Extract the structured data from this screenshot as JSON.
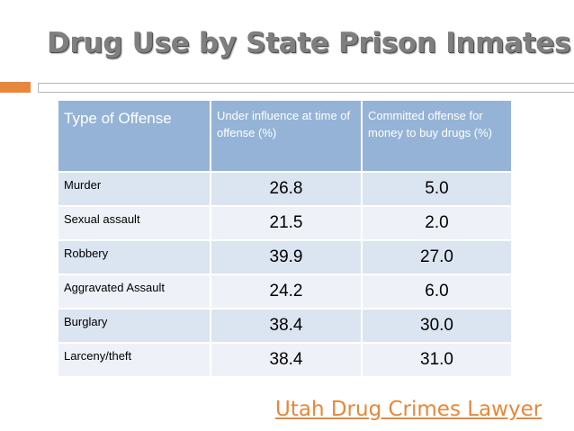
{
  "slide": {
    "title": "Drug Use by State Prison Inmates",
    "accent_color": "#e8873a",
    "header_color": "#95b3d7"
  },
  "table": {
    "headers": [
      "Type of Offense",
      "Under influence at time of offense (%)",
      "Committed offense for money to buy drugs (%)"
    ],
    "rows": [
      {
        "offense": "Murder",
        "under_influence": "26.8",
        "for_money": "5.0"
      },
      {
        "offense": "Sexual assault",
        "under_influence": "21.5",
        "for_money": "2.0"
      },
      {
        "offense": "Robbery",
        "under_influence": "39.9",
        "for_money": "27.0"
      },
      {
        "offense": "Aggravated Assault",
        "under_influence": "24.2",
        "for_money": "6.0"
      },
      {
        "offense": "Burglary",
        "under_influence": "38.4",
        "for_money": "30.0"
      },
      {
        "offense": "Larceny/theft",
        "under_influence": "38.4",
        "for_money": "31.0"
      }
    ]
  },
  "footer": {
    "link_text": "Utah Drug Crimes Lawyer"
  }
}
